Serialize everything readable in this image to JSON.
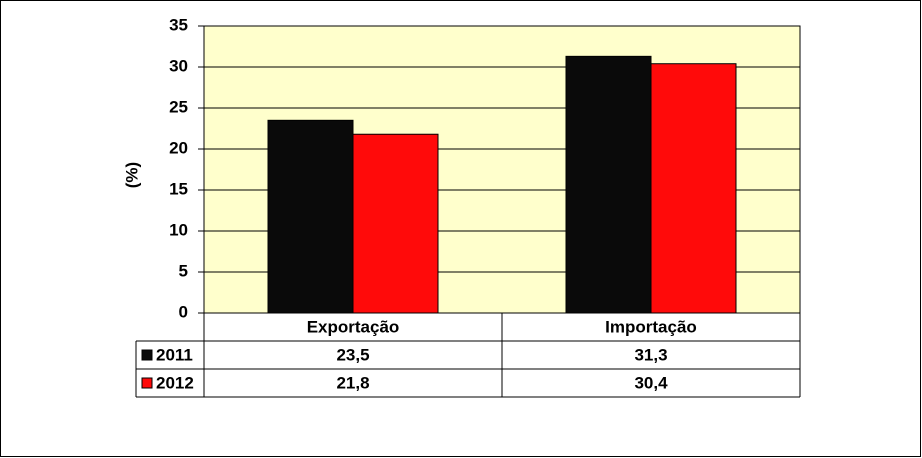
{
  "chart_data": {
    "type": "bar",
    "ylabel": "(%)",
    "categories": [
      "Exportação",
      "Importação"
    ],
    "series": [
      {
        "name": "2011",
        "color": "#0a0a0a",
        "values": [
          23.5,
          31.3
        ],
        "value_labels": [
          "23,5",
          "31,3"
        ]
      },
      {
        "name": "2012",
        "color": "#ff0a0a",
        "values": [
          21.8,
          30.4
        ],
        "value_labels": [
          "21,8",
          "30,4"
        ]
      }
    ],
    "ylim": [
      0,
      35
    ],
    "yticks": [
      0,
      5,
      10,
      15,
      20,
      25,
      30,
      35
    ],
    "grid": true,
    "plot_background": "#ffffcc"
  }
}
